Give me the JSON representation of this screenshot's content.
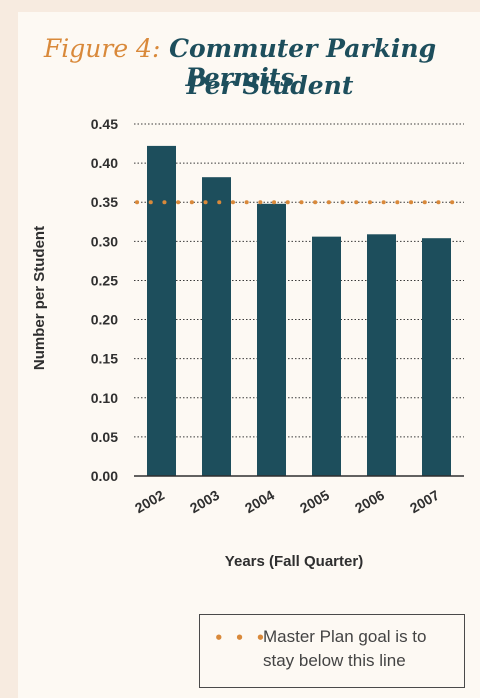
{
  "chart_data": {
    "type": "bar",
    "title_prefix": "Figure 4:",
    "title_line1": "Commuter Parking Permits",
    "title_line2": "Per Student",
    "xlabel": "Years (Fall Quarter)",
    "ylabel": "Number per Student",
    "categories": [
      "2002",
      "2003",
      "2004",
      "2005",
      "2006",
      "2007"
    ],
    "values": [
      0.422,
      0.382,
      0.348,
      0.306,
      0.309,
      0.304
    ],
    "ylim": [
      0,
      0.45
    ],
    "yticks": [
      "0.00",
      "0.05",
      "0.10",
      "0.15",
      "0.20",
      "0.25",
      "0.30",
      "0.35",
      "0.40",
      "0.45"
    ],
    "goal": 0.35,
    "grid": "dotted horizontal",
    "bar_color": "#1d4e5c",
    "goal_color": "#d9893a",
    "legend": {
      "dots": "• • •",
      "text": "Master Plan goal is to stay below this line"
    }
  }
}
